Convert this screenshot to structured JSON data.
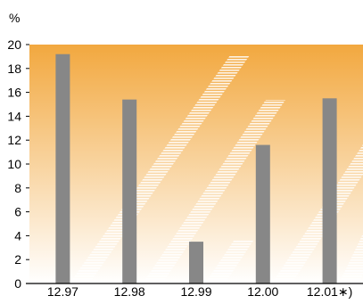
{
  "chart_data": {
    "type": "bar",
    "unit": "%",
    "categories": [
      "12.97",
      "12.98",
      "12.99",
      "12.00",
      "12.01∗)"
    ],
    "values": [
      19.2,
      15.4,
      3.5,
      11.6,
      15.5
    ],
    "ylim": [
      0,
      20
    ],
    "yticks": [
      0,
      2,
      4,
      6,
      8,
      10,
      12,
      14,
      16,
      18,
      20
    ],
    "grid": false,
    "legend": "none",
    "colors": {
      "bar": "#878787",
      "background_top": "#f2a83f",
      "background_bottom": "#ffffff",
      "decorative_stripes": "#ffffff",
      "axis": "#000000"
    }
  }
}
